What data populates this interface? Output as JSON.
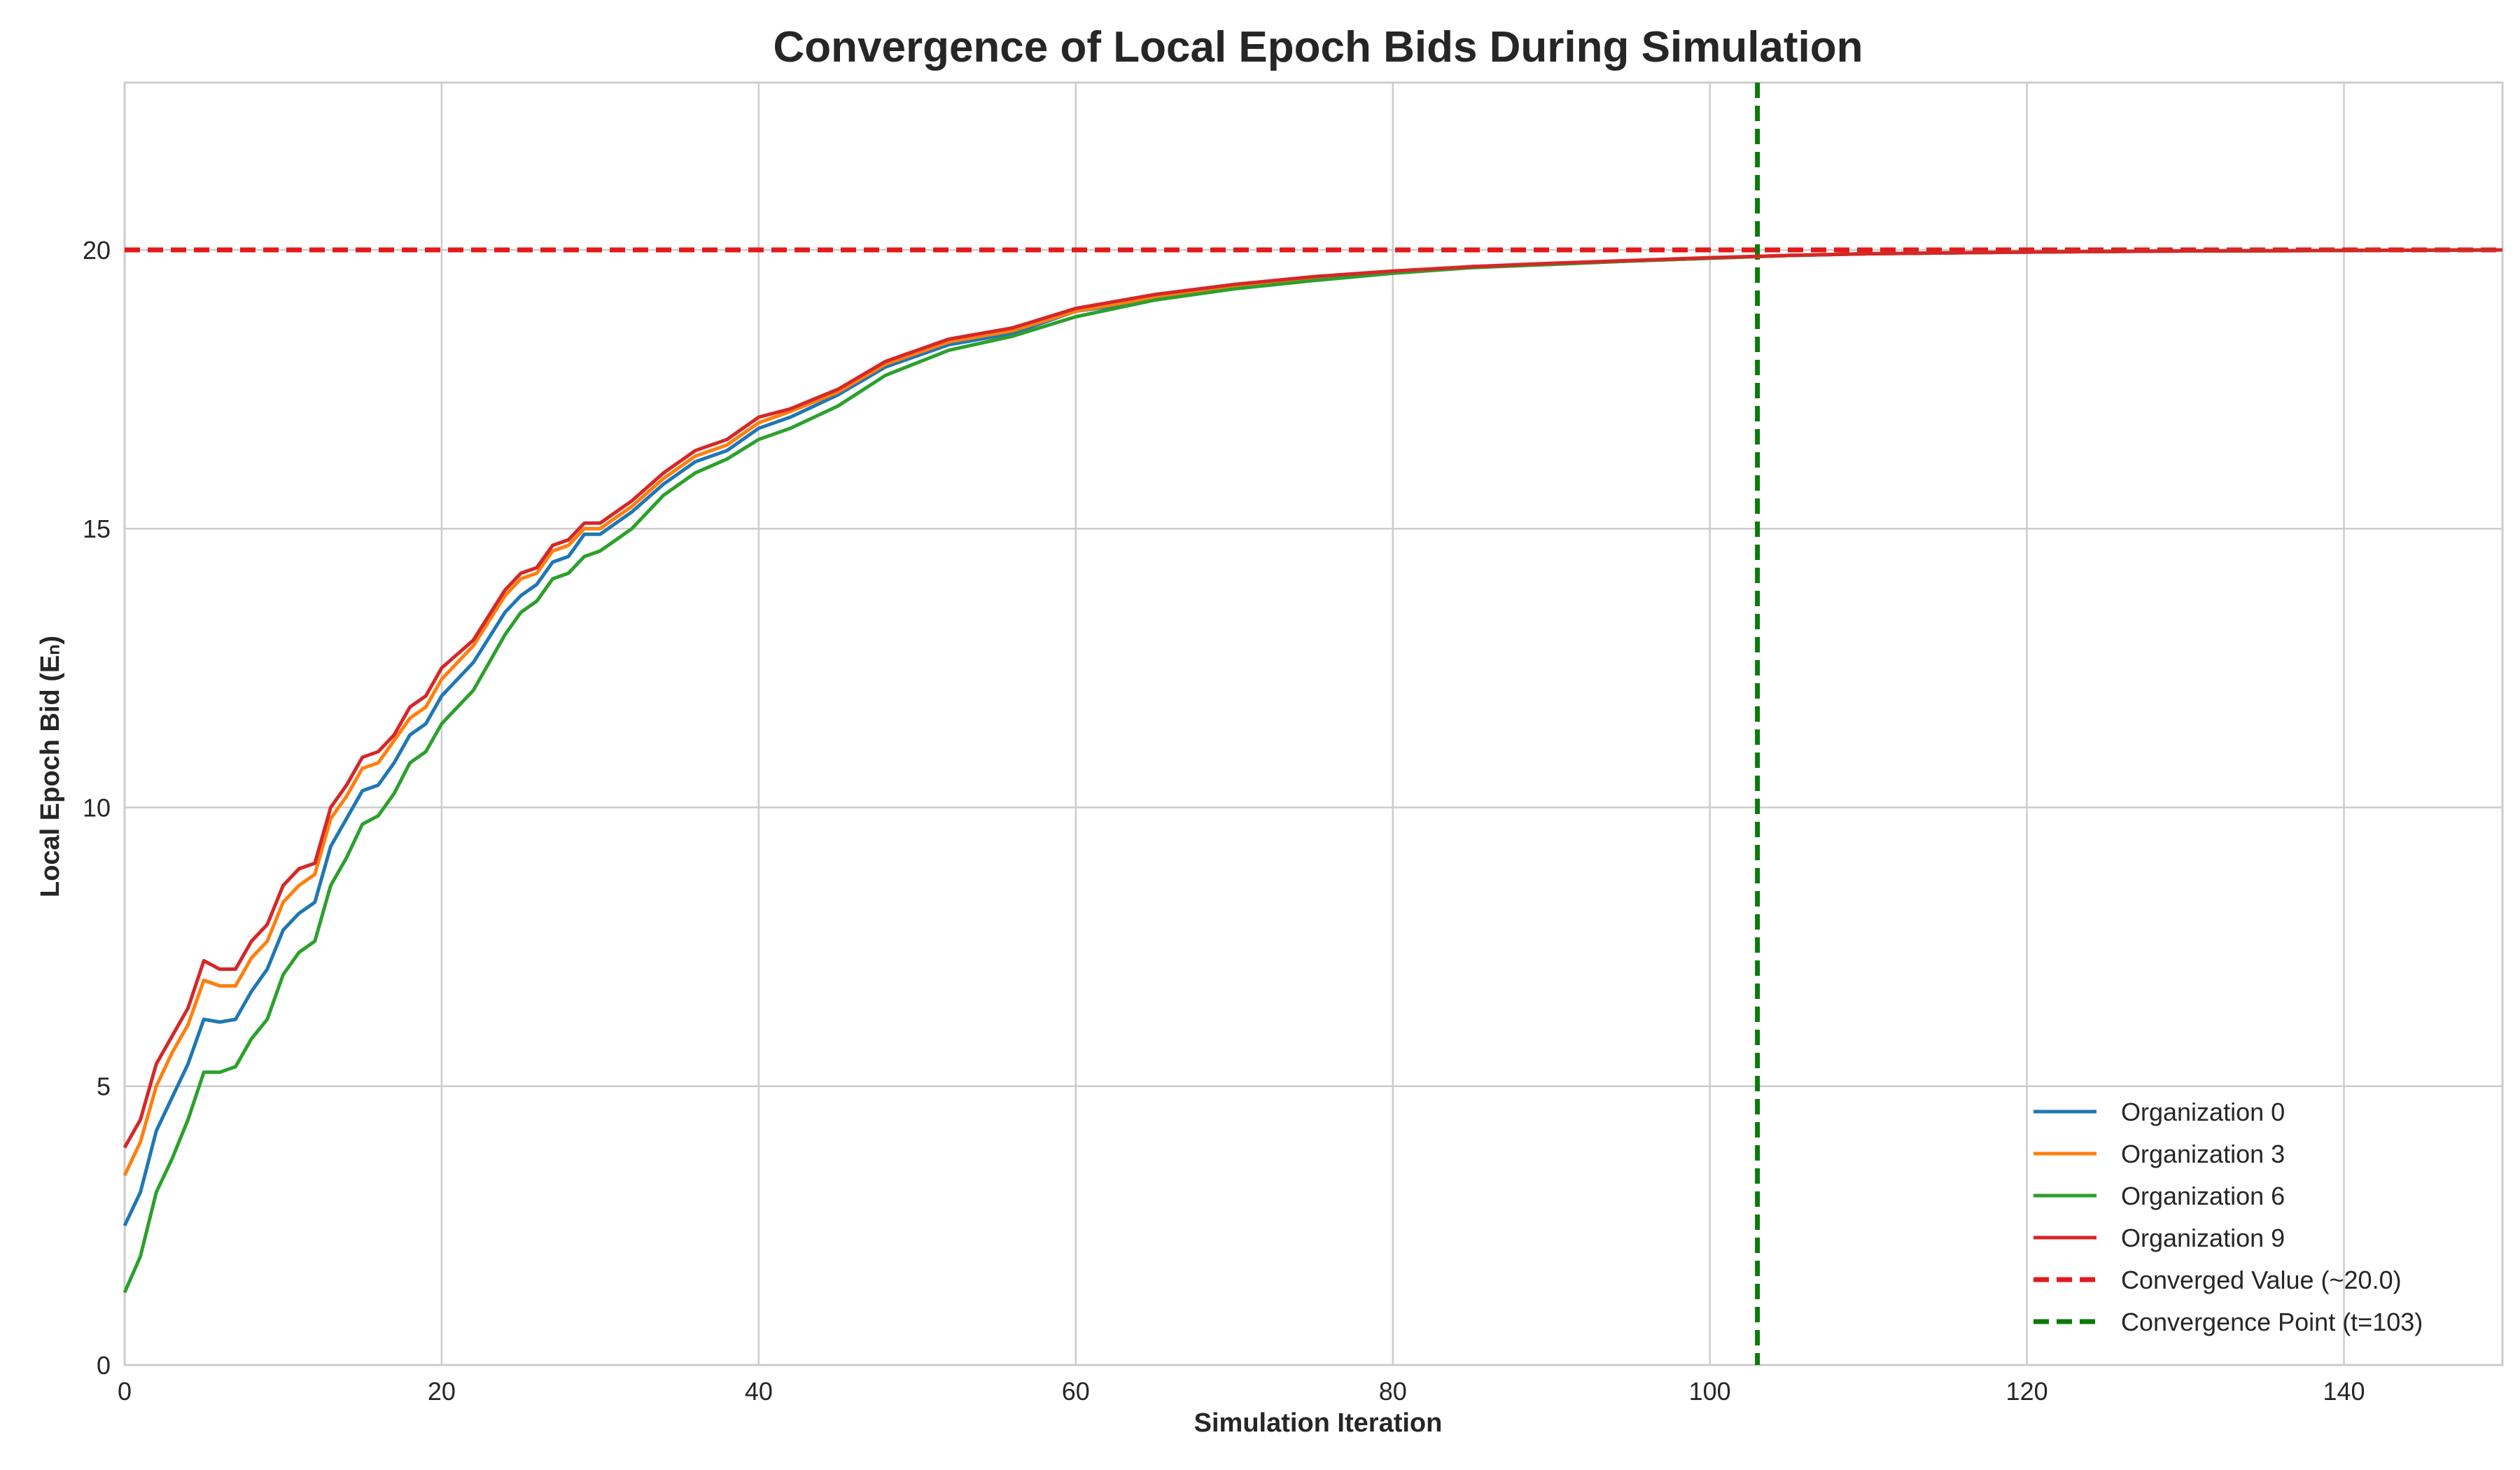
{
  "chart_data": {
    "type": "line",
    "title": "Convergence of Local Epoch Bids During Simulation",
    "xlabel": "Simulation Iteration",
    "ylabel": "Local Epoch Bid (Eₙ)",
    "xlim": [
      0,
      150
    ],
    "ylim": [
      0,
      23
    ],
    "xticks": [
      0,
      20,
      40,
      60,
      80,
      100,
      120,
      140
    ],
    "yticks": [
      0,
      5,
      10,
      15,
      20
    ],
    "grid": true,
    "legend_position": "bottom-right",
    "series": [
      {
        "name": "Organization 0",
        "color": "#1f77b4",
        "x": [
          0,
          1,
          2,
          3,
          4,
          5,
          6,
          7,
          8,
          9,
          10,
          11,
          12,
          13,
          14,
          15,
          16,
          17,
          18,
          19,
          20,
          22,
          24,
          25,
          26,
          27,
          28,
          29,
          30,
          32,
          34,
          36,
          38,
          40,
          42,
          45,
          48,
          52,
          56,
          60,
          65,
          70,
          75,
          80,
          85,
          90,
          95,
          100,
          105,
          110,
          120,
          130,
          140,
          150
        ],
        "values": [
          2.5,
          3.1,
          4.2,
          4.8,
          5.4,
          6.2,
          6.15,
          6.2,
          6.7,
          7.1,
          7.8,
          8.1,
          8.3,
          9.3,
          9.8,
          10.3,
          10.4,
          10.8,
          11.3,
          11.5,
          12.0,
          12.6,
          13.5,
          13.8,
          14.0,
          14.4,
          14.5,
          14.9,
          14.9,
          15.3,
          15.8,
          16.2,
          16.4,
          16.8,
          17.0,
          17.4,
          17.9,
          18.3,
          18.5,
          18.9,
          19.1,
          19.35,
          19.5,
          19.6,
          19.7,
          19.75,
          19.8,
          19.85,
          19.9,
          19.93,
          19.96,
          19.98,
          19.99,
          20.0
        ]
      },
      {
        "name": "Organization 3",
        "color": "#ff7f0e",
        "x": [
          0,
          1,
          2,
          3,
          4,
          5,
          6,
          7,
          8,
          9,
          10,
          11,
          12,
          13,
          14,
          15,
          16,
          17,
          18,
          19,
          20,
          22,
          24,
          25,
          26,
          27,
          28,
          29,
          30,
          32,
          34,
          36,
          38,
          40,
          42,
          45,
          48,
          52,
          56,
          60,
          65,
          70,
          75,
          80,
          85,
          90,
          95,
          100,
          105,
          110,
          120,
          130,
          140,
          150
        ],
        "values": [
          3.4,
          4.0,
          5.0,
          5.6,
          6.1,
          6.9,
          6.8,
          6.8,
          7.3,
          7.6,
          8.3,
          8.6,
          8.8,
          9.8,
          10.2,
          10.7,
          10.8,
          11.2,
          11.6,
          11.8,
          12.3,
          12.9,
          13.8,
          14.1,
          14.2,
          14.6,
          14.7,
          15.0,
          15.0,
          15.4,
          15.9,
          16.3,
          16.5,
          16.9,
          17.1,
          17.45,
          17.95,
          18.35,
          18.55,
          18.9,
          19.15,
          19.35,
          19.5,
          19.6,
          19.7,
          19.75,
          19.8,
          19.85,
          19.9,
          19.93,
          19.96,
          19.98,
          19.99,
          20.0
        ]
      },
      {
        "name": "Organization 6",
        "color": "#2ca02c",
        "x": [
          0,
          1,
          2,
          3,
          4,
          5,
          6,
          7,
          8,
          9,
          10,
          11,
          12,
          13,
          14,
          15,
          16,
          17,
          18,
          19,
          20,
          22,
          24,
          25,
          26,
          27,
          28,
          29,
          30,
          32,
          34,
          36,
          38,
          40,
          42,
          45,
          48,
          52,
          56,
          60,
          65,
          70,
          75,
          80,
          85,
          90,
          95,
          100,
          105,
          110,
          120,
          130,
          140,
          150
        ],
        "values": [
          1.3,
          1.95,
          3.1,
          3.7,
          4.4,
          5.25,
          5.25,
          5.35,
          5.85,
          6.2,
          7.0,
          7.4,
          7.6,
          8.6,
          9.1,
          9.7,
          9.85,
          10.25,
          10.8,
          11.0,
          11.5,
          12.1,
          13.1,
          13.5,
          13.7,
          14.1,
          14.2,
          14.5,
          14.6,
          15.0,
          15.6,
          16.0,
          16.25,
          16.6,
          16.8,
          17.2,
          17.75,
          18.2,
          18.45,
          18.8,
          19.1,
          19.3,
          19.45,
          19.58,
          19.68,
          19.74,
          19.8,
          19.85,
          19.9,
          19.93,
          19.96,
          19.98,
          19.99,
          20.0
        ]
      },
      {
        "name": "Organization 9",
        "color": "#d62728",
        "x": [
          0,
          1,
          2,
          3,
          4,
          5,
          6,
          7,
          8,
          9,
          10,
          11,
          12,
          13,
          14,
          15,
          16,
          17,
          18,
          19,
          20,
          22,
          24,
          25,
          26,
          27,
          28,
          29,
          30,
          32,
          34,
          36,
          38,
          40,
          42,
          45,
          48,
          52,
          56,
          60,
          65,
          70,
          75,
          80,
          85,
          90,
          95,
          100,
          105,
          110,
          120,
          130,
          140,
          150
        ],
        "values": [
          3.9,
          4.4,
          5.4,
          5.9,
          6.4,
          7.25,
          7.1,
          7.1,
          7.6,
          7.9,
          8.6,
          8.9,
          9.0,
          10.0,
          10.4,
          10.9,
          11.0,
          11.3,
          11.8,
          12.0,
          12.5,
          13.0,
          13.9,
          14.2,
          14.3,
          14.7,
          14.8,
          15.1,
          15.1,
          15.5,
          16.0,
          16.4,
          16.6,
          17.0,
          17.15,
          17.5,
          18.0,
          18.4,
          18.6,
          18.95,
          19.2,
          19.38,
          19.52,
          19.62,
          19.7,
          19.76,
          19.81,
          19.86,
          19.9,
          19.93,
          19.96,
          19.98,
          19.99,
          20.0
        ]
      }
    ],
    "reference_lines": [
      {
        "name": "Converged Value (~20.0)",
        "orientation": "horizontal",
        "value": 20.0,
        "color": "#e31a1c",
        "style": "dashed"
      },
      {
        "name": "Convergence Point (t=103)",
        "orientation": "vertical",
        "value": 103,
        "color": "#0a7a0a",
        "style": "dashed"
      }
    ]
  }
}
